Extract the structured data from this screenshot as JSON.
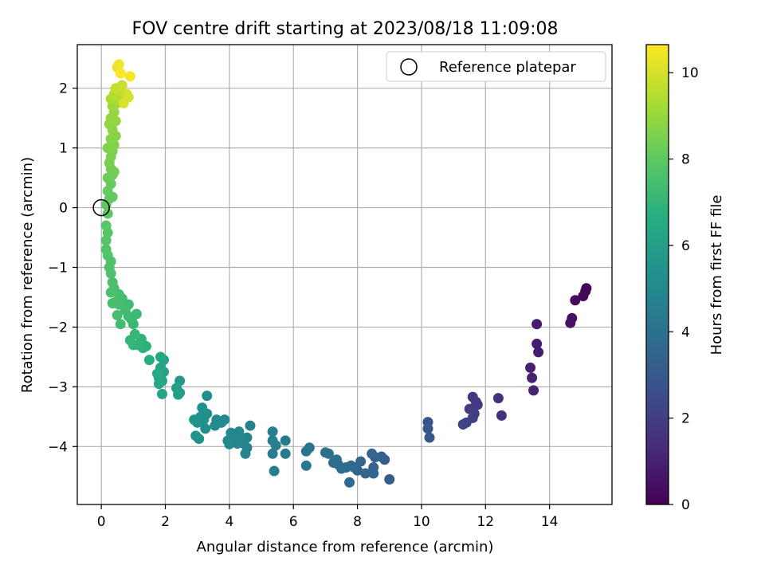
{
  "chart_data": {
    "type": "scatter",
    "title": "FOV centre drift starting at 2023/08/18 11:09:08",
    "xlabel": "Angular distance from reference (arcmin)",
    "ylabel": "Rotation from reference (arcmin)",
    "xlim": [
      -0.75,
      15.95
    ],
    "ylim": [
      -4.97,
      2.73
    ],
    "xticks": [
      0,
      2,
      4,
      6,
      8,
      10,
      12,
      14
    ],
    "yticks": [
      -4,
      -3,
      -2,
      -1,
      0,
      1,
      2
    ],
    "grid": true,
    "legend": {
      "placement": "top-right",
      "entries": [
        "Reference platepar"
      ]
    },
    "reference_point": {
      "x": 0,
      "y": 0
    },
    "colorbar": {
      "label": "Hours from first FF file",
      "min": 0,
      "max": 10.65,
      "ticks": [
        0,
        2,
        4,
        6,
        8,
        10
      ],
      "colormap": "viridis",
      "colors": [
        "#440154",
        "#472c7a",
        "#3b518b",
        "#2c718e",
        "#21908d",
        "#27ad81",
        "#5cc863",
        "#aadc32",
        "#fde725"
      ]
    },
    "series": [
      {
        "color_by": "hours",
        "points": [
          [
            15.15,
            -1.35,
            0.1
          ],
          [
            15.12,
            -1.4,
            0.15
          ],
          [
            15.05,
            -1.48,
            0.2
          ],
          [
            14.8,
            -1.55,
            0.35
          ],
          [
            14.7,
            -1.85,
            0.45
          ],
          [
            14.65,
            -1.93,
            0.5
          ],
          [
            13.6,
            -1.95,
            0.8
          ],
          [
            13.6,
            -2.28,
            0.85
          ],
          [
            13.65,
            -2.42,
            0.9
          ],
          [
            13.4,
            -2.68,
            1.0
          ],
          [
            13.45,
            -2.85,
            1.05
          ],
          [
            13.5,
            -3.06,
            1.1
          ],
          [
            12.4,
            -3.19,
            1.5
          ],
          [
            12.5,
            -3.48,
            1.55
          ],
          [
            11.6,
            -3.17,
            1.7
          ],
          [
            11.7,
            -3.25,
            1.75
          ],
          [
            11.75,
            -3.3,
            1.8
          ],
          [
            11.5,
            -3.37,
            1.9
          ],
          [
            11.65,
            -3.45,
            1.95
          ],
          [
            11.6,
            -3.52,
            2.0
          ],
          [
            11.4,
            -3.6,
            2.1
          ],
          [
            11.3,
            -3.63,
            2.2
          ],
          [
            10.2,
            -3.59,
            2.8
          ],
          [
            10.2,
            -3.7,
            2.85
          ],
          [
            10.25,
            -3.85,
            2.9
          ],
          [
            9.0,
            -4.55,
            3.2
          ],
          [
            8.85,
            -4.22,
            3.25
          ],
          [
            8.75,
            -4.17,
            3.3
          ],
          [
            8.55,
            -4.18,
            3.35
          ],
          [
            8.5,
            -4.35,
            3.4
          ],
          [
            8.5,
            -4.45,
            3.42
          ],
          [
            8.45,
            -4.12,
            3.45
          ],
          [
            8.25,
            -4.45,
            3.5
          ],
          [
            8.1,
            -4.25,
            3.55
          ],
          [
            8.0,
            -4.4,
            3.6
          ],
          [
            7.9,
            -4.35,
            3.62
          ],
          [
            7.8,
            -4.32,
            3.65
          ],
          [
            7.75,
            -4.6,
            3.7
          ],
          [
            7.65,
            -4.35,
            3.75
          ],
          [
            7.5,
            -4.37,
            3.8
          ],
          [
            7.4,
            -4.3,
            3.82
          ],
          [
            7.35,
            -4.22,
            3.85
          ],
          [
            7.25,
            -4.27,
            3.88
          ],
          [
            7.1,
            -4.12,
            3.9
          ],
          [
            7.0,
            -4.1,
            3.95
          ],
          [
            6.5,
            -4.02,
            4.1
          ],
          [
            6.4,
            -4.08,
            4.15
          ],
          [
            6.4,
            -4.32,
            4.2
          ],
          [
            5.75,
            -3.9,
            4.35
          ],
          [
            5.75,
            -4.12,
            4.4
          ],
          [
            5.45,
            -3.98,
            4.45
          ],
          [
            5.4,
            -4.41,
            4.5
          ],
          [
            5.35,
            -3.75,
            4.52
          ],
          [
            5.35,
            -3.9,
            4.55
          ],
          [
            5.35,
            -4.12,
            4.58
          ],
          [
            4.65,
            -3.65,
            4.7
          ],
          [
            4.55,
            -3.85,
            4.75
          ],
          [
            4.55,
            -4.02,
            4.78
          ],
          [
            4.5,
            -4.12,
            4.8
          ],
          [
            4.45,
            -3.95,
            4.82
          ],
          [
            4.35,
            -3.88,
            4.85
          ],
          [
            4.3,
            -3.75,
            4.88
          ],
          [
            4.25,
            -3.95,
            4.9
          ],
          [
            4.15,
            -3.85,
            4.92
          ],
          [
            4.05,
            -3.77,
            4.95
          ],
          [
            4.0,
            -3.96,
            4.98
          ],
          [
            3.95,
            -3.9,
            5.0
          ],
          [
            3.85,
            -3.55,
            5.02
          ],
          [
            3.75,
            -3.6,
            5.05
          ],
          [
            3.6,
            -3.55,
            5.08
          ],
          [
            3.55,
            -3.65,
            5.1
          ],
          [
            3.3,
            -3.15,
            5.2
          ],
          [
            3.3,
            -3.45,
            5.25
          ],
          [
            3.25,
            -3.7,
            5.28
          ],
          [
            3.2,
            -3.55,
            5.3
          ],
          [
            3.15,
            -3.35,
            5.32
          ],
          [
            3.1,
            -3.5,
            5.35
          ],
          [
            3.05,
            -3.87,
            5.4
          ],
          [
            3.0,
            -3.6,
            5.45
          ],
          [
            2.95,
            -3.82,
            5.48
          ],
          [
            2.9,
            -3.55,
            5.5
          ],
          [
            2.45,
            -2.9,
            5.8
          ],
          [
            2.4,
            -3.13,
            5.85
          ],
          [
            2.45,
            -3.1,
            5.9
          ],
          [
            2.35,
            -3.02,
            5.95
          ],
          [
            1.95,
            -2.55,
            6.1
          ],
          [
            1.95,
            -2.75,
            6.15
          ],
          [
            1.9,
            -2.9,
            6.2
          ],
          [
            1.9,
            -3.12,
            6.25
          ],
          [
            1.85,
            -2.68,
            6.3
          ],
          [
            1.8,
            -2.85,
            6.35
          ],
          [
            1.8,
            -2.95,
            6.4
          ],
          [
            1.85,
            -2.5,
            6.45
          ],
          [
            1.75,
            -2.78,
            6.5
          ],
          [
            1.5,
            -2.55,
            6.7
          ],
          [
            1.4,
            -2.32,
            6.8
          ],
          [
            1.3,
            -2.35,
            6.85
          ],
          [
            1.25,
            -2.2,
            6.9
          ],
          [
            1.15,
            -2.3,
            6.95
          ],
          [
            1.0,
            -2.3,
            7.0
          ],
          [
            0.9,
            -2.22,
            7.05
          ],
          [
            1.05,
            -2.12,
            7.1
          ],
          [
            1.0,
            -1.95,
            7.15
          ],
          [
            1.1,
            -1.78,
            7.2
          ],
          [
            0.95,
            -1.88,
            7.22
          ],
          [
            0.85,
            -1.82,
            7.25
          ],
          [
            0.85,
            -1.62,
            7.28
          ],
          [
            0.75,
            -1.72,
            7.3
          ],
          [
            0.65,
            -1.52,
            7.32
          ],
          [
            0.7,
            -1.65,
            7.35
          ],
          [
            0.6,
            -1.95,
            7.38
          ],
          [
            0.55,
            -1.62,
            7.4
          ],
          [
            0.5,
            -1.8,
            7.42
          ],
          [
            0.55,
            -1.45,
            7.45
          ],
          [
            0.45,
            -1.58,
            7.48
          ],
          [
            0.4,
            -1.35,
            7.5
          ],
          [
            0.35,
            -1.6,
            7.52
          ],
          [
            0.35,
            -1.25,
            7.55
          ],
          [
            0.3,
            -1.42,
            7.58
          ],
          [
            0.3,
            -1.1,
            7.62
          ],
          [
            0.25,
            -1.0,
            7.65
          ],
          [
            0.3,
            -0.9,
            7.68
          ],
          [
            0.2,
            -0.8,
            7.72
          ],
          [
            0.15,
            -0.7,
            7.75
          ],
          [
            0.15,
            -0.55,
            7.8
          ],
          [
            0.2,
            -0.42,
            7.85
          ],
          [
            0.15,
            -0.3,
            7.9
          ],
          [
            0.2,
            -0.1,
            7.95
          ],
          [
            0.15,
            0.05,
            8.0
          ],
          [
            0.25,
            0.15,
            8.05
          ],
          [
            0.35,
            0.18,
            8.1
          ],
          [
            0.2,
            0.28,
            8.15
          ],
          [
            0.3,
            0.4,
            8.2
          ],
          [
            0.2,
            0.5,
            8.25
          ],
          [
            0.35,
            0.55,
            8.3
          ],
          [
            0.3,
            0.65,
            8.35
          ],
          [
            0.4,
            0.6,
            8.4
          ],
          [
            0.25,
            0.75,
            8.45
          ],
          [
            0.3,
            0.85,
            8.5
          ],
          [
            0.35,
            0.95,
            8.55
          ],
          [
            0.2,
            1.0,
            8.6
          ],
          [
            0.4,
            1.05,
            8.65
          ],
          [
            0.3,
            1.15,
            8.7
          ],
          [
            0.45,
            1.2,
            8.75
          ],
          [
            0.35,
            1.3,
            8.8
          ],
          [
            0.25,
            1.4,
            8.85
          ],
          [
            0.45,
            1.45,
            8.9
          ],
          [
            0.3,
            1.5,
            8.95
          ],
          [
            0.4,
            1.6,
            9.0
          ],
          [
            0.35,
            1.7,
            9.1
          ],
          [
            0.5,
            1.75,
            9.2
          ],
          [
            0.3,
            1.82,
            9.3
          ],
          [
            0.55,
            1.85,
            9.4
          ],
          [
            0.4,
            1.9,
            9.5
          ],
          [
            0.6,
            1.95,
            9.6
          ],
          [
            0.45,
            2.0,
            9.7
          ],
          [
            0.65,
            2.05,
            9.8
          ],
          [
            0.8,
            1.9,
            9.9
          ],
          [
            0.85,
            1.85,
            10.0
          ],
          [
            0.7,
            1.75,
            10.1
          ],
          [
            0.5,
            2.35,
            10.3
          ],
          [
            0.55,
            2.4,
            10.4
          ],
          [
            0.9,
            2.2,
            10.5
          ],
          [
            0.6,
            2.25,
            10.6
          ]
        ]
      }
    ]
  }
}
